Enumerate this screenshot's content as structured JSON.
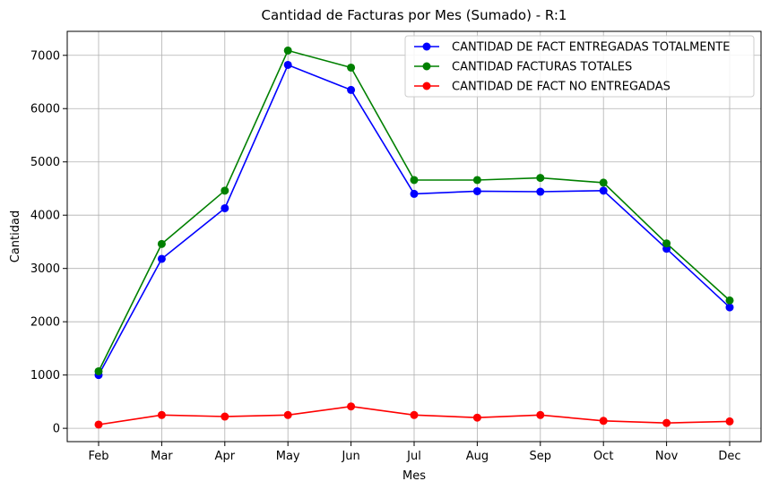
{
  "chart_data": {
    "type": "line",
    "title": "Cantidad de Facturas por Mes (Sumado) - R:1",
    "xlabel": "Mes",
    "ylabel": "Cantidad",
    "categories": [
      "Feb",
      "Mar",
      "Apr",
      "May",
      "Jun",
      "Jul",
      "Aug",
      "Sep",
      "Oct",
      "Nov",
      "Dec"
    ],
    "ylim": [
      -250,
      7450
    ],
    "yticks": [
      0,
      1000,
      2000,
      3000,
      4000,
      5000,
      6000,
      7000
    ],
    "grid": true,
    "legend_position": "top-right",
    "series": [
      {
        "name": "CANTIDAD DE FACT ENTREGADAS TOTALMENTE",
        "color": "#0000ff",
        "values": [
          1000,
          3180,
          4130,
          6820,
          6350,
          4400,
          4450,
          4440,
          4460,
          3370,
          2270
        ]
      },
      {
        "name": "CANTIDAD FACTURAS TOTALES",
        "color": "#008000",
        "values": [
          1070,
          3460,
          4460,
          7090,
          6770,
          4660,
          4660,
          4700,
          4610,
          3470,
          2400
        ]
      },
      {
        "name": "CANTIDAD DE FACT NO ENTREGADAS",
        "color": "#ff0000",
        "values": [
          70,
          250,
          220,
          250,
          410,
          250,
          200,
          250,
          140,
          100,
          130
        ]
      }
    ]
  }
}
